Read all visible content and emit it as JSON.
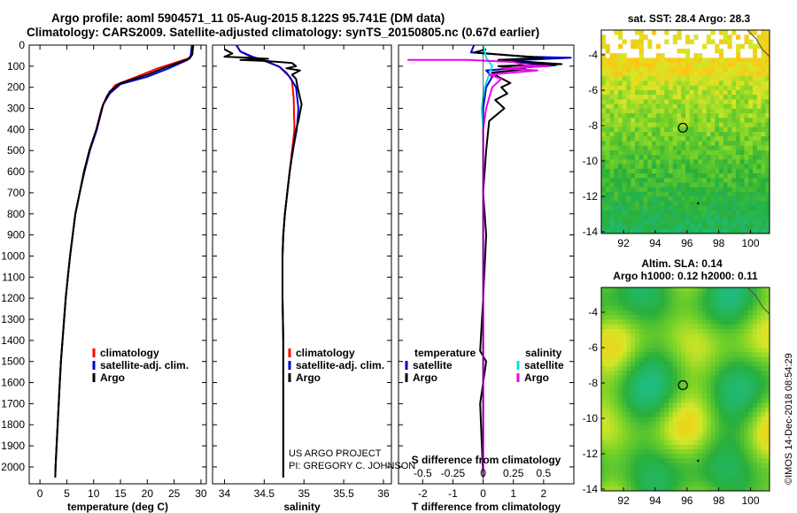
{
  "title": {
    "line1": "Argo profile: aoml 5904571_11 05-Aug-2015 8.122S 95.741E (DM data)",
    "line2": "Climatology: CARS2009. Satellite-adjusted climatology: synTS_20150805.nc (0.67d earlier)"
  },
  "colors": {
    "red": "#ff0000",
    "blue": "#0000cc",
    "black": "#000000",
    "cyan": "#00e5e5",
    "magenta": "#ee00ee"
  },
  "chart_data": [
    {
      "type": "line",
      "id": "temperature",
      "xlabel": "temperature (deg C)",
      "ylabel": "",
      "xlim": [
        -2,
        31
      ],
      "ylim": [
        2080,
        0
      ],
      "xticks": [
        0,
        5,
        10,
        15,
        20,
        25,
        30
      ],
      "yticks": [
        0,
        100,
        200,
        300,
        400,
        500,
        600,
        700,
        800,
        900,
        1000,
        1100,
        1200,
        1300,
        1400,
        1500,
        1600,
        1700,
        1800,
        1900,
        2000
      ],
      "legend": [
        "climatology",
        "satellite-adj. clim.",
        "Argo"
      ],
      "series": [
        {
          "name": "climatology",
          "color": "red",
          "points": [
            [
              28.6,
              0
            ],
            [
              28.4,
              40
            ],
            [
              28.0,
              60
            ],
            [
              22,
              110
            ],
            [
              18,
              150
            ],
            [
              14,
              190
            ],
            [
              12.5,
              240
            ],
            [
              11.5,
              300
            ],
            [
              10.5,
              400
            ],
            [
              9.2,
              500
            ],
            [
              8.2,
              600
            ],
            [
              7.4,
              700
            ],
            [
              6.6,
              800
            ],
            [
              6.1,
              900
            ],
            [
              5.6,
              1000
            ],
            [
              5.2,
              1100
            ],
            [
              4.8,
              1200
            ],
            [
              4.5,
              1300
            ],
            [
              4.2,
              1400
            ],
            [
              3.9,
              1500
            ],
            [
              3.7,
              1600
            ],
            [
              3.5,
              1700
            ],
            [
              3.3,
              1800
            ],
            [
              3.1,
              1900
            ],
            [
              2.9,
              2000
            ],
            [
              2.85,
              2050
            ]
          ]
        },
        {
          "name": "satellite-adj. clim.",
          "color": "blue",
          "points": [
            [
              28.3,
              0
            ],
            [
              28.1,
              50
            ],
            [
              27.5,
              70
            ],
            [
              24,
              110
            ],
            [
              20,
              150
            ],
            [
              15,
              185
            ],
            [
              13,
              230
            ],
            [
              11.8,
              280
            ],
            [
              10.6,
              400
            ],
            [
              9.3,
              500
            ],
            [
              8.3,
              600
            ],
            [
              7.4,
              700
            ],
            [
              6.6,
              800
            ],
            [
              6.1,
              900
            ],
            [
              5.6,
              1000
            ],
            [
              5.2,
              1100
            ],
            [
              4.8,
              1200
            ],
            [
              4.5,
              1300
            ],
            [
              4.2,
              1400
            ],
            [
              3.9,
              1500
            ],
            [
              3.7,
              1600
            ],
            [
              3.5,
              1700
            ],
            [
              3.3,
              1800
            ],
            [
              3.1,
              1900
            ],
            [
              2.9,
              2000
            ],
            [
              2.85,
              2050
            ]
          ]
        },
        {
          "name": "Argo",
          "color": "black",
          "points": [
            [
              28.5,
              0
            ],
            [
              28.4,
              45
            ],
            [
              27.8,
              65
            ],
            [
              24,
              100
            ],
            [
              20,
              140
            ],
            [
              15,
              180
            ],
            [
              13,
              220
            ],
            [
              11.8,
              280
            ],
            [
              10.5,
              400
            ],
            [
              9.2,
              500
            ],
            [
              8.2,
              600
            ],
            [
              7.4,
              700
            ],
            [
              6.6,
              800
            ],
            [
              6.1,
              900
            ],
            [
              5.6,
              1000
            ],
            [
              5.2,
              1100
            ],
            [
              4.8,
              1200
            ],
            [
              4.5,
              1300
            ],
            [
              4.2,
              1400
            ],
            [
              3.9,
              1500
            ],
            [
              3.7,
              1600
            ],
            [
              3.5,
              1700
            ],
            [
              3.3,
              1800
            ],
            [
              3.1,
              1900
            ],
            [
              2.9,
              2000
            ],
            [
              2.85,
              2050
            ]
          ]
        }
      ]
    },
    {
      "type": "line",
      "id": "salinity",
      "xlabel": "salinity",
      "xlim": [
        33.85,
        36.1
      ],
      "ylim": [
        2080,
        0
      ],
      "xticks": [
        34,
        34.5,
        35,
        35.5,
        36
      ],
      "legend": [
        "climatology",
        "satellite-adj. clim.",
        "Argo"
      ],
      "annotation": [
        "US ARGO PROJECT",
        "PI: GREGORY C. JOHNSON"
      ],
      "series": [
        {
          "name": "climatology",
          "color": "red",
          "points": [
            [
              34.15,
              0
            ],
            [
              34.2,
              30
            ],
            [
              34.3,
              50
            ],
            [
              34.5,
              75
            ],
            [
              34.68,
              100
            ],
            [
              34.78,
              130
            ],
            [
              34.85,
              170
            ],
            [
              34.87,
              250
            ],
            [
              34.88,
              400
            ],
            [
              34.85,
              500
            ],
            [
              34.82,
              600
            ],
            [
              34.79,
              700
            ],
            [
              34.76,
              800
            ],
            [
              34.74,
              900
            ],
            [
              34.73,
              1000
            ],
            [
              34.73,
              1200
            ],
            [
              34.74,
              1400
            ],
            [
              34.74,
              1600
            ],
            [
              34.74,
              1800
            ],
            [
              34.74,
              2050
            ]
          ]
        },
        {
          "name": "satellite-adj. clim.",
          "color": "blue",
          "points": [
            [
              34.15,
              0
            ],
            [
              34.2,
              30
            ],
            [
              34.35,
              55
            ],
            [
              34.55,
              80
            ],
            [
              34.7,
              105
            ],
            [
              34.82,
              150
            ],
            [
              34.9,
              200
            ],
            [
              34.93,
              300
            ],
            [
              34.91,
              400
            ],
            [
              34.86,
              500
            ],
            [
              34.82,
              600
            ],
            [
              34.79,
              700
            ],
            [
              34.76,
              800
            ],
            [
              34.74,
              900
            ],
            [
              34.73,
              1000
            ],
            [
              34.73,
              1200
            ],
            [
              34.74,
              1400
            ],
            [
              34.74,
              1600
            ],
            [
              34.74,
              1800
            ],
            [
              34.74,
              2050
            ]
          ]
        },
        {
          "name": "Argo",
          "color": "black",
          "points": [
            [
              34.0,
              20
            ],
            [
              34.1,
              40
            ],
            [
              34.0,
              55
            ],
            [
              34.3,
              60
            ],
            [
              34.55,
              65
            ],
            [
              34.2,
              70
            ],
            [
              34.5,
              75
            ],
            [
              34.7,
              80
            ],
            [
              34.85,
              85
            ],
            [
              34.9,
              100
            ],
            [
              34.78,
              110
            ],
            [
              34.95,
              120
            ],
            [
              34.85,
              140
            ],
            [
              34.9,
              160
            ],
            [
              34.92,
              200
            ],
            [
              34.95,
              250
            ],
            [
              34.97,
              280
            ],
            [
              34.95,
              320
            ],
            [
              34.93,
              360
            ],
            [
              34.9,
              400
            ],
            [
              34.86,
              500
            ],
            [
              34.82,
              600
            ],
            [
              34.79,
              700
            ],
            [
              34.76,
              800
            ],
            [
              34.74,
              900
            ],
            [
              34.73,
              1000
            ],
            [
              34.73,
              1200
            ],
            [
              34.74,
              1400
            ],
            [
              34.74,
              1600
            ],
            [
              34.74,
              1800
            ],
            [
              34.74,
              2050
            ]
          ]
        }
      ]
    },
    {
      "type": "line",
      "id": "difference",
      "xlabel": "T difference from climatology",
      "xlabel_top": "S difference from climatology",
      "xlim": [
        -2.8,
        3.0
      ],
      "ylim": [
        2080,
        0
      ],
      "xticks": [
        -2,
        -1,
        0,
        1,
        2
      ],
      "s_ticks": [
        {
          "label": "-0.5",
          "at": -2
        },
        {
          "label": "-0.25",
          "at": -1
        },
        {
          "label": "0",
          "at": 0
        },
        {
          "label": "0.25",
          "at": 1
        },
        {
          "label": "0.5",
          "at": 2
        }
      ],
      "legend": {
        "temperature_title": "temperature",
        "salinity_title": "salinity",
        "satellite": "satellite",
        "argo": "Argo"
      },
      "series": [
        {
          "name": "T satellite",
          "color": "blue",
          "points": [
            [
              -0.3,
              0
            ],
            [
              -0.4,
              35
            ],
            [
              1.5,
              55
            ],
            [
              2.9,
              60
            ],
            [
              0.6,
              75
            ],
            [
              2.4,
              95
            ],
            [
              0.1,
              120
            ],
            [
              0.3,
              150
            ],
            [
              0.1,
              200
            ],
            [
              0,
              300
            ],
            [
              0,
              2050
            ]
          ]
        },
        {
          "name": "T Argo",
          "color": "black",
          "points": [
            [
              0.1,
              20
            ],
            [
              -0.3,
              35
            ],
            [
              1.0,
              50
            ],
            [
              2.0,
              60
            ],
            [
              0.5,
              70
            ],
            [
              2.6,
              90
            ],
            [
              0.5,
              100
            ],
            [
              1.4,
              115
            ],
            [
              0.3,
              130
            ],
            [
              0.5,
              150
            ],
            [
              0.9,
              180
            ],
            [
              0.6,
              200
            ],
            [
              0.8,
              230
            ],
            [
              0.4,
              260
            ],
            [
              0.7,
              300
            ],
            [
              0.2,
              360
            ],
            [
              0.1,
              500
            ],
            [
              0.0,
              700
            ],
            [
              0.1,
              900
            ],
            [
              0.0,
              1200
            ],
            [
              -0.1,
              1450
            ],
            [
              0.1,
              1500
            ],
            [
              -0.1,
              1700
            ],
            [
              0.0,
              2050
            ]
          ]
        },
        {
          "name": "S satellite",
          "color": "cyan",
          "points": [
            [
              0,
              0
            ],
            [
              0.1,
              60
            ],
            [
              0.3,
              100
            ],
            [
              0.05,
              200
            ],
            [
              -0.05,
              300
            ],
            [
              0,
              400
            ],
            [
              0,
              2050
            ]
          ]
        },
        {
          "name": "S Argo",
          "color": "magenta",
          "points": [
            [
              -2.5,
              70
            ],
            [
              -0.5,
              70
            ],
            [
              1.0,
              80
            ],
            [
              1.4,
              95
            ],
            [
              2.2,
              100
            ],
            [
              0.6,
              110
            ],
            [
              1.8,
              120
            ],
            [
              0.2,
              140
            ],
            [
              0.6,
              160
            ],
            [
              0.3,
              200
            ],
            [
              0.1,
              300
            ],
            [
              0,
              400
            ],
            [
              0,
              2050
            ]
          ]
        }
      ]
    },
    {
      "type": "heatmap",
      "id": "sst-map",
      "title": "sat. SST: 28.4 Argo: 28.3",
      "xlim": [
        90.6,
        101.2
      ],
      "ylim": [
        -14.1,
        -2.6
      ],
      "xticks": [
        92,
        94,
        96,
        98,
        100
      ],
      "yticks": [
        -4,
        -6,
        -8,
        -10,
        -12,
        -14
      ],
      "marker": {
        "lon": 95.741,
        "lat": -8.122
      }
    },
    {
      "type": "heatmap",
      "id": "sla-map",
      "title": "Altim. SLA: 0.14",
      "title2": "Argo h1000: 0.12 h2000: 0.11",
      "xlim": [
        90.6,
        101.2
      ],
      "ylim": [
        -14.1,
        -2.6
      ],
      "xticks": [
        92,
        94,
        96,
        98,
        100
      ],
      "yticks": [
        -4,
        -6,
        -8,
        -10,
        -12,
        -14
      ],
      "marker": {
        "lon": 95.741,
        "lat": -8.122
      }
    }
  ],
  "credit": "©IMOS 14-Dec-2018 08:54:29"
}
